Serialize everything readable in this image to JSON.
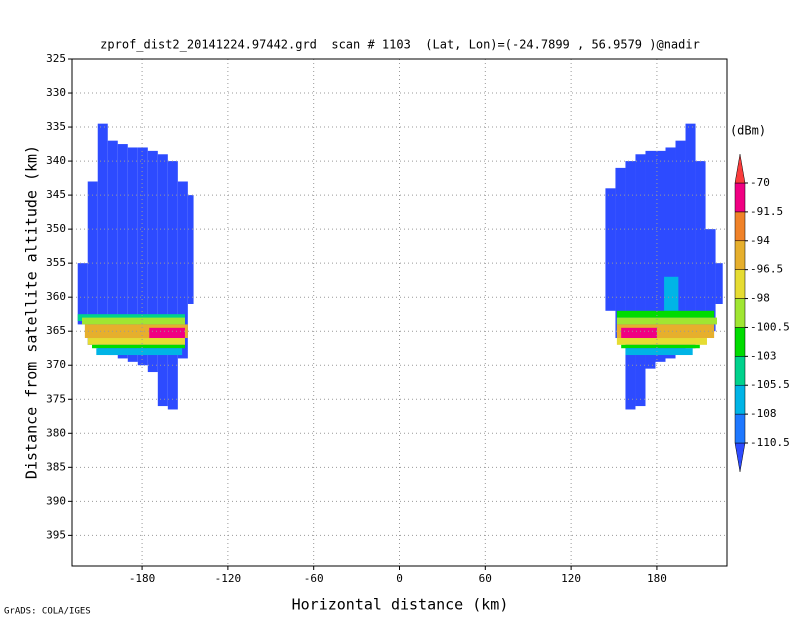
{
  "chart_data": {
    "type": "heatmap",
    "title": "zprof_dist2_20141224.97442.grd  scan # 1103  (Lat, Lon)=(-24.7899 , 56.9579 )@nadir",
    "x_label": "Horizontal distance (km)",
    "y_label": "Distance from satellite altitude (km)",
    "credit": "GrADS: COLA/IGES",
    "xlim": [
      -229,
      229
    ],
    "ylim": [
      399.5,
      325
    ],
    "xticks": [
      -180,
      -120,
      -60,
      0,
      60,
      120,
      180
    ],
    "yticks": [
      325,
      330,
      335,
      340,
      345,
      350,
      355,
      360,
      365,
      370,
      375,
      380,
      385,
      390,
      395
    ],
    "grid": true,
    "colorbar": {
      "unit": "(dBm)",
      "levels": [
        -110.5,
        -108,
        -105.5,
        -103,
        -100.5,
        -98,
        -96.5,
        -94,
        -91.5,
        -70
      ],
      "colors": [
        "#2d4bff",
        "#1e78ff",
        "#00b4e6",
        "#00d28c",
        "#00dc00",
        "#a0e632",
        "#e6dc32",
        "#e6af2d",
        "#f08228",
        "#f00082",
        "#fa3c3c"
      ]
    },
    "cells": [
      [
        -225,
        -218,
        355,
        364,
        -112
      ],
      [
        -218,
        -211,
        343,
        367,
        -112
      ],
      [
        -211,
        -204,
        334.5,
        368,
        -112
      ],
      [
        -204,
        -197,
        337,
        368.5,
        -112
      ],
      [
        -197,
        -190,
        337.5,
        369,
        -112
      ],
      [
        -190,
        -183,
        338,
        369.5,
        -112
      ],
      [
        -183,
        -176,
        338,
        370,
        -112
      ],
      [
        -176,
        -169,
        338.5,
        371,
        -112
      ],
      [
        -169,
        -162,
        339,
        376,
        -112
      ],
      [
        -162,
        -155,
        340,
        376.5,
        -112
      ],
      [
        -155,
        -148,
        343,
        369,
        -112
      ],
      [
        -148,
        -144,
        345,
        361,
        -112
      ],
      [
        -225,
        -150,
        362.5,
        363.5,
        -104
      ],
      [
        -222,
        -150,
        363,
        364,
        -99
      ],
      [
        -220,
        -148,
        364,
        366,
        -95
      ],
      [
        -175,
        -150,
        364.5,
        366,
        -85
      ],
      [
        -218,
        -150,
        366,
        367,
        -97
      ],
      [
        -215,
        -150,
        367,
        367.5,
        -102
      ],
      [
        -212,
        -152,
        367.5,
        368.5,
        -106
      ],
      [
        144,
        151,
        344,
        362,
        -112
      ],
      [
        151,
        158,
        341,
        366,
        -112
      ],
      [
        158,
        165,
        340,
        376.5,
        -112
      ],
      [
        165,
        172,
        339,
        376,
        -112
      ],
      [
        172,
        179,
        338.5,
        370.5,
        -112
      ],
      [
        179,
        186,
        338.5,
        369.5,
        -112
      ],
      [
        186,
        193,
        338,
        369,
        -112
      ],
      [
        193,
        200,
        337,
        368,
        -112
      ],
      [
        200,
        207,
        334.5,
        367.5,
        -112
      ],
      [
        207,
        214,
        340,
        366,
        -112
      ],
      [
        214,
        221,
        350,
        365,
        -112
      ],
      [
        221,
        226,
        355,
        361,
        -112
      ],
      [
        185,
        195,
        357,
        362,
        -106
      ],
      [
        152,
        220,
        362,
        363,
        -102
      ],
      [
        152,
        222,
        363,
        364,
        -99
      ],
      [
        152,
        220,
        364,
        366,
        -95
      ],
      [
        155,
        180,
        364.5,
        366,
        -85
      ],
      [
        152,
        215,
        366,
        367,
        -97
      ],
      [
        155,
        210,
        367,
        367.5,
        -102
      ],
      [
        158,
        205,
        367.5,
        368.5,
        -106
      ]
    ]
  }
}
